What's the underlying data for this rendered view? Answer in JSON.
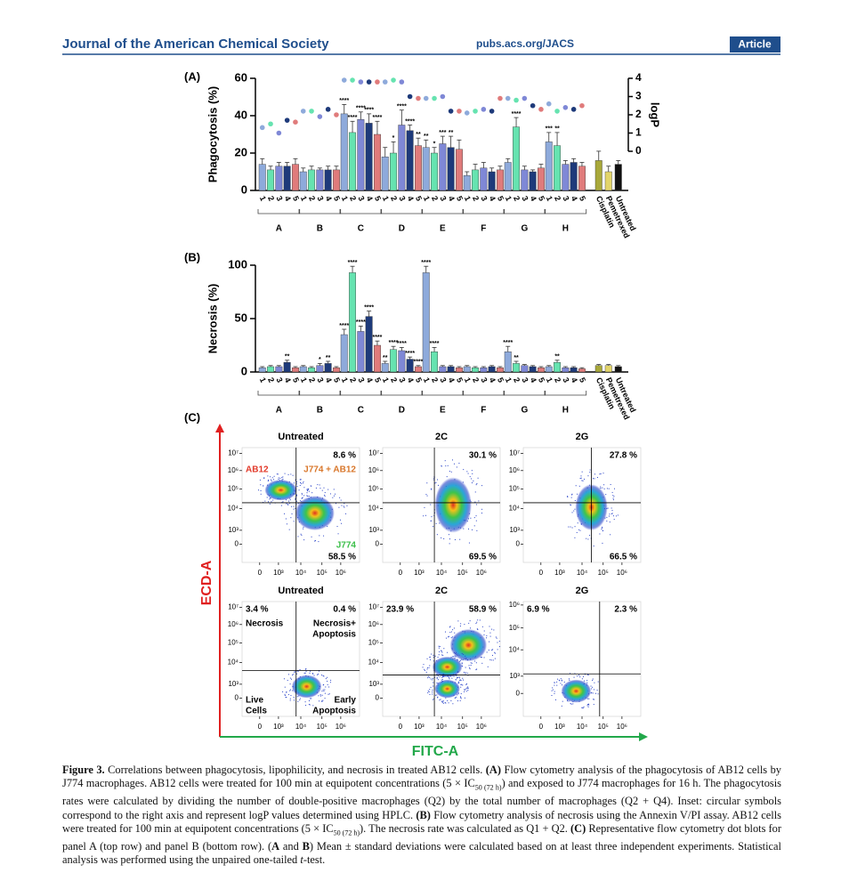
{
  "header": {
    "journal": "Journal of the American Chemical Society",
    "url": "pubs.acs.org/JACS",
    "tag": "Article"
  },
  "chart_data": [
    {
      "type": "bar",
      "panel_label": "(A)",
      "y_axis_title": "Phagocytosis (%)",
      "y2_axis_title": "logP",
      "categories": [
        "1",
        "2",
        "3",
        "4",
        "5",
        "1",
        "2",
        "3",
        "4",
        "5",
        "1",
        "2",
        "3",
        "4",
        "5",
        "1",
        "2",
        "3",
        "4",
        "5",
        "1",
        "2",
        "3",
        "4",
        "5",
        "1",
        "2",
        "3",
        "4",
        "5",
        "1",
        "2",
        "3",
        "4",
        "5",
        "1",
        "2",
        "3",
        "4",
        "5",
        "Cisplatin",
        "Pemetrexed",
        "Untreated"
      ],
      "groups": [
        "A",
        "B",
        "C",
        "D",
        "E",
        "F",
        "G",
        "H"
      ],
      "values": [
        14,
        11,
        13,
        13,
        14,
        10,
        11,
        11,
        11,
        11,
        41,
        31,
        38,
        36,
        30,
        18,
        20,
        35,
        32,
        24,
        23,
        20,
        25,
        23,
        22,
        8,
        11,
        12,
        10,
        11,
        15,
        34,
        11,
        10,
        12,
        26,
        24,
        14,
        15,
        13,
        16,
        10,
        14
      ],
      "errors": [
        3,
        2,
        2,
        2,
        3,
        2,
        2,
        1,
        2,
        2,
        5,
        6,
        4,
        5,
        7,
        5,
        6,
        8,
        3,
        4,
        4,
        3,
        4,
        6,
        5,
        2,
        3,
        3,
        2,
        2,
        2,
        5,
        2,
        1,
        2,
        5,
        7,
        2,
        2,
        2,
        5,
        3,
        2
      ],
      "significance": [
        null,
        null,
        null,
        null,
        null,
        null,
        null,
        null,
        null,
        null,
        "****",
        "****",
        "****",
        "****",
        "****",
        null,
        "*",
        "****",
        "****",
        "**",
        "**",
        "*",
        "***",
        "**",
        null,
        null,
        null,
        null,
        null,
        null,
        null,
        "****",
        null,
        null,
        null,
        "***",
        "**",
        null,
        null,
        null,
        null,
        null,
        null
      ],
      "palette": [
        "#8eaadb",
        "#66e3b0",
        "#7f88d6",
        "#1e3a7a",
        "#e07b7b"
      ],
      "control_colors": [
        "#a8a83a",
        "#e3d56a",
        "#111111"
      ],
      "ylim": [
        0,
        60
      ],
      "yticks": [
        0,
        20,
        40,
        60
      ],
      "y2lim": [
        0,
        4
      ],
      "y2ticks": [
        0,
        1,
        2,
        3,
        4
      ],
      "logp": {
        "axis": "y2",
        "values": [
          1.3,
          1.5,
          1.0,
          1.7,
          1.6,
          2.2,
          2.2,
          1.9,
          2.3,
          2.0,
          3.9,
          3.9,
          3.8,
          3.8,
          3.8,
          3.8,
          3.9,
          3.8,
          3.0,
          2.9,
          2.9,
          2.9,
          3.0,
          2.2,
          2.2,
          2.1,
          2.2,
          2.3,
          2.2,
          2.9,
          2.9,
          2.8,
          2.9,
          2.5,
          2.3,
          2.6,
          2.2,
          2.4,
          2.3,
          2.5,
          null,
          null,
          null
        ]
      }
    },
    {
      "type": "bar",
      "panel_label": "(B)",
      "y_axis_title": "Necrosis (%)",
      "categories": [
        "1",
        "2",
        "3",
        "4",
        "5",
        "1",
        "2",
        "3",
        "4",
        "5",
        "1",
        "2",
        "3",
        "4",
        "5",
        "1",
        "2",
        "3",
        "4",
        "5",
        "1",
        "2",
        "3",
        "4",
        "5",
        "1",
        "2",
        "3",
        "4",
        "5",
        "1",
        "2",
        "3",
        "4",
        "5",
        "1",
        "2",
        "3",
        "4",
        "5",
        "Cisplatin",
        "Pemetrexed",
        "Untreated"
      ],
      "groups": [
        "A",
        "B",
        "C",
        "D",
        "E",
        "F",
        "G",
        "H"
      ],
      "values": [
        4,
        5,
        5,
        9,
        4,
        5,
        4,
        6,
        8,
        4,
        35,
        93,
        38,
        52,
        25,
        8,
        21,
        20,
        12,
        5,
        93,
        19,
        5,
        5,
        4,
        5,
        4,
        4,
        5,
        4,
        19,
        8,
        6,
        5,
        4,
        5,
        9,
        4,
        4,
        3,
        6,
        6,
        5
      ],
      "errors": [
        1,
        1,
        1,
        2,
        1,
        1,
        1,
        2,
        2,
        1,
        5,
        6,
        5,
        5,
        4,
        2,
        3,
        3,
        2,
        1,
        6,
        4,
        1,
        1,
        1,
        1,
        1,
        1,
        1,
        1,
        5,
        2,
        1,
        1,
        1,
        1,
        2,
        1,
        1,
        1,
        1,
        1,
        1
      ],
      "significance": [
        null,
        null,
        null,
        "**",
        null,
        null,
        null,
        "*",
        "**",
        null,
        "****",
        "****",
        "****",
        "****",
        "****",
        "**",
        "****",
        "****",
        "****",
        "****",
        "****",
        "****",
        null,
        null,
        null,
        null,
        null,
        null,
        null,
        null,
        "****",
        "**",
        null,
        null,
        null,
        null,
        "**",
        null,
        null,
        null,
        null,
        null,
        null
      ],
      "palette": [
        "#8eaadb",
        "#66e3b0",
        "#7f88d6",
        "#1e3a7a",
        "#e07b7b"
      ],
      "control_colors": [
        "#a8a83a",
        "#e3d56a",
        "#111111"
      ],
      "ylim": [
        0,
        100
      ],
      "yticks": [
        0,
        50,
        100
      ]
    }
  ],
  "flow_cytometry": {
    "panel_label": "(C)",
    "y_axis_title": "ECD-A",
    "x_axis_title": "FITC-A",
    "x_tick_labels": [
      "0",
      "10³",
      "10⁴",
      "10⁵",
      "10⁶"
    ],
    "y_tick_labels": [
      "10⁷",
      "10⁶",
      "10⁵",
      "10⁴",
      "10³",
      "0"
    ],
    "plots": [
      {
        "title": "Untreated",
        "labels": [
          {
            "lines": [
              "8.6 %"
            ],
            "position": "top-right",
            "color": "#000000"
          },
          {
            "lines": [
              "AB12"
            ],
            "position": "sub-top-left",
            "color": "#e23a2a"
          },
          {
            "lines": [
              "J774 + AB12"
            ],
            "position": "sub-top-right",
            "color": "#d9772b"
          },
          {
            "lines": [
              "J774"
            ],
            "position": "sub-bottom-right",
            "color": "#3cbf4a"
          },
          {
            "lines": [
              "58.5 %"
            ],
            "position": "bottom-right",
            "color": "#000000"
          }
        ]
      },
      {
        "title": "2C",
        "labels": [
          {
            "lines": [
              "30.1 %"
            ],
            "position": "top-right",
            "color": "#000000"
          },
          {
            "lines": [
              "69.5 %"
            ],
            "position": "bottom-right",
            "color": "#000000"
          }
        ]
      },
      {
        "title": "2G",
        "labels": [
          {
            "lines": [
              "27.8 %"
            ],
            "position": "top-right",
            "color": "#000000"
          },
          {
            "lines": [
              "66.5 %"
            ],
            "position": "bottom-right",
            "color": "#000000"
          }
        ]
      },
      {
        "title": "Untreated",
        "labels": [
          {
            "lines": [
              "3.4 %"
            ],
            "position": "top-left",
            "color": "#000000"
          },
          {
            "lines": [
              "0.4 %"
            ],
            "position": "top-right",
            "color": "#000000"
          },
          {
            "lines": [
              "Necrosis"
            ],
            "position": "sub-top-left",
            "color": "#000000"
          },
          {
            "lines": [
              "Necrosis+",
              "Apoptosis"
            ],
            "position": "sub-top-right",
            "color": "#000000"
          },
          {
            "lines": [
              "Live",
              "Cells"
            ],
            "position": "bottom-left",
            "color": "#000000"
          },
          {
            "lines": [
              "Early",
              "Apoptosis"
            ],
            "position": "bottom-right",
            "color": "#000000"
          }
        ]
      },
      {
        "title": "2C",
        "labels": [
          {
            "lines": [
              "23.9 %"
            ],
            "position": "top-left",
            "color": "#000000"
          },
          {
            "lines": [
              "58.9 %"
            ],
            "position": "top-right",
            "color": "#000000"
          }
        ]
      },
      {
        "title": "2G",
        "y_tick_labels": [
          "10⁶",
          "10⁵",
          "10⁴",
          "10³",
          "0"
        ],
        "labels": [
          {
            "lines": [
              "6.9 %"
            ],
            "position": "top-left",
            "color": "#000000"
          },
          {
            "lines": [
              "2.3 %"
            ],
            "position": "top-right",
            "color": "#000000"
          }
        ]
      }
    ]
  },
  "caption": {
    "segments": [
      {
        "text": "Figure 3.",
        "style": "bold"
      },
      {
        "text": " Correlations between phagocytosis, lipophilicity, and necrosis in treated AB12 cells. ",
        "style": "plain"
      },
      {
        "text": "(A)",
        "style": "bold"
      },
      {
        "text": " Flow cytometry analysis of the phagocytosis of AB12 cells by J774 macrophages. AB12 cells were treated for 100 min at equipotent concentrations (5 × IC",
        "style": "plain"
      },
      {
        "text": "50 (72 h)",
        "style": "sub"
      },
      {
        "text": ") and exposed to J774 macrophages for 16 h. The phagocytosis rates were calculated by dividing the number of double-positive macrophages (Q2) by the total number of macrophages (Q2 + Q4). Inset: circular symbols correspond to the right axis and represent logP values determined using HPLC. ",
        "style": "plain"
      },
      {
        "text": "(B)",
        "style": "bold"
      },
      {
        "text": " Flow cytometry analysis of necrosis using the Annexin V/PI assay. AB12 cells were treated for 100 min at equipotent concentrations (5 × IC",
        "style": "plain"
      },
      {
        "text": "50 (72 h)",
        "style": "sub"
      },
      {
        "text": "). The necrosis rate was calculated as Q1 + Q2. ",
        "style": "plain"
      },
      {
        "text": "(C)",
        "style": "bold"
      },
      {
        "text": " Representative flow cytometry dot blots for panel A (top row) and panel B (bottom row). (",
        "style": "plain"
      },
      {
        "text": "A",
        "style": "bold"
      },
      {
        "text": " and ",
        "style": "plain"
      },
      {
        "text": "B",
        "style": "bold"
      },
      {
        "text": ") Mean ± standard deviations were calculated based on at least three independent experiments. Statistical analysis was performed using the unpaired one-tailed ",
        "style": "plain"
      },
      {
        "text": "t",
        "style": "italic"
      },
      {
        "text": "-test.",
        "style": "plain"
      }
    ]
  }
}
